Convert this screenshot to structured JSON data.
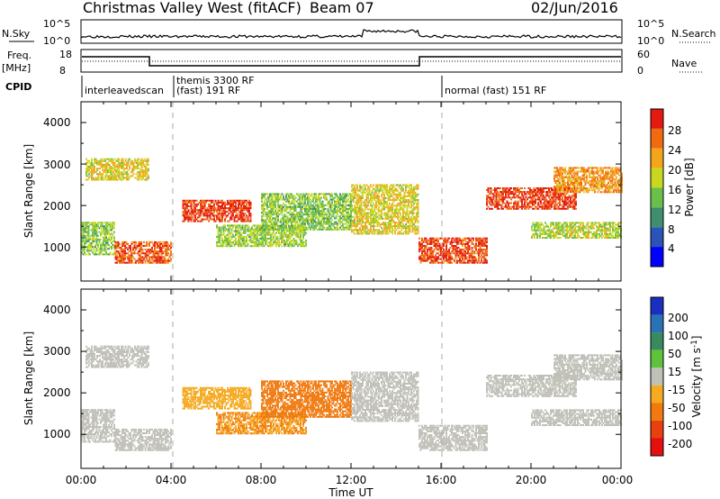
{
  "header": {
    "title": "Christmas Valley West (fitACF)",
    "beam": "Beam 07",
    "date": "02/Jun/2016"
  },
  "nsky_panel": {
    "left_label": "N.Sky",
    "left_ticks": [
      "10^5",
      "10^0"
    ],
    "right_ticks": [
      "10^5",
      "10^0"
    ],
    "right_label": "N.Search"
  },
  "freq_panel": {
    "label_1": "Freq.",
    "label_2": "[MHz]",
    "left_ticks": [
      "18",
      "8"
    ],
    "right_ticks": [
      "60",
      "0"
    ],
    "right_label": "Nave"
  },
  "cpid_panel": {
    "label": "CPID",
    "modes": [
      "interleavedscan",
      "themis 3300 RF",
      "(fast) 191 RF",
      "normal (fast) 151 RF"
    ]
  },
  "x_axis": {
    "ticks": [
      "00:00",
      "04:00",
      "08:00",
      "12:00",
      "16:00",
      "20:00",
      "00:00"
    ],
    "label": "Time UT"
  },
  "power_panel": {
    "ylabel": "Slant Range [km]",
    "yticks": [
      "1000",
      "2000",
      "3000",
      "4000"
    ],
    "colorbar_label": "Power [dB]",
    "colorbar_ticks": [
      "4",
      "8",
      "12",
      "16",
      "20",
      "24",
      "28"
    ],
    "colors": [
      "#0000ff",
      "#2a54b8",
      "#3f8f6e",
      "#6abf4b",
      "#c8d81e",
      "#f5a51b",
      "#f06a10",
      "#e41a10"
    ]
  },
  "velocity_panel": {
    "ylabel": "Slant Range [km]",
    "yticks": [
      "1000",
      "2000",
      "3000",
      "4000"
    ],
    "colorbar_label": "Velocity [m s",
    "colorbar_label_sup": "-1",
    "colorbar_label_end": "]",
    "colorbar_ticks": [
      "200",
      "100",
      "50",
      "15",
      "-15",
      "-50",
      "-100",
      "-200"
    ],
    "colors": [
      "#1a2fc0",
      "#2a72b6",
      "#3a8a60",
      "#5ec23a",
      "#c0c0b8",
      "#f5aa20",
      "#f07a10",
      "#e84010",
      "#e41010"
    ]
  },
  "chart_data": {
    "type": "heatmap",
    "x_range_hours": [
      0,
      24
    ],
    "y_range_km": [
      180,
      4500
    ],
    "power_db_range": [
      0,
      30
    ],
    "velocity_range": [
      -200,
      200
    ],
    "scatter_bands": [
      {
        "t": [
          0,
          1.5
        ],
        "r": [
          800,
          1600
        ],
        "power": 14,
        "velocity": 0
      },
      {
        "t": [
          0.2,
          3
        ],
        "r": [
          2600,
          3100
        ],
        "power": 18,
        "velocity": 0
      },
      {
        "t": [
          1.5,
          4
        ],
        "r": [
          600,
          1100
        ],
        "power": 25,
        "velocity": 0
      },
      {
        "t": [
          4.5,
          7.5
        ],
        "r": [
          1600,
          2100
        ],
        "power": 27,
        "velocity": -40
      },
      {
        "t": [
          6,
          10
        ],
        "r": [
          1000,
          1500
        ],
        "power": 15,
        "velocity": -50
      },
      {
        "t": [
          8,
          12
        ],
        "r": [
          1400,
          2300
        ],
        "power": 14,
        "velocity": -60
      },
      {
        "t": [
          12,
          15
        ],
        "r": [
          1300,
          2500
        ],
        "power": 18,
        "velocity": 5
      },
      {
        "t": [
          15,
          18
        ],
        "r": [
          600,
          1200
        ],
        "power": 26,
        "velocity": 0
      },
      {
        "t": [
          18,
          22
        ],
        "r": [
          1900,
          2400
        ],
        "power": 27,
        "velocity": 0
      },
      {
        "t": [
          20,
          24
        ],
        "r": [
          1200,
          1600
        ],
        "power": 16,
        "velocity": 0
      },
      {
        "t": [
          21,
          24
        ],
        "r": [
          2300,
          2900
        ],
        "power": 22,
        "velocity": 0
      }
    ]
  }
}
